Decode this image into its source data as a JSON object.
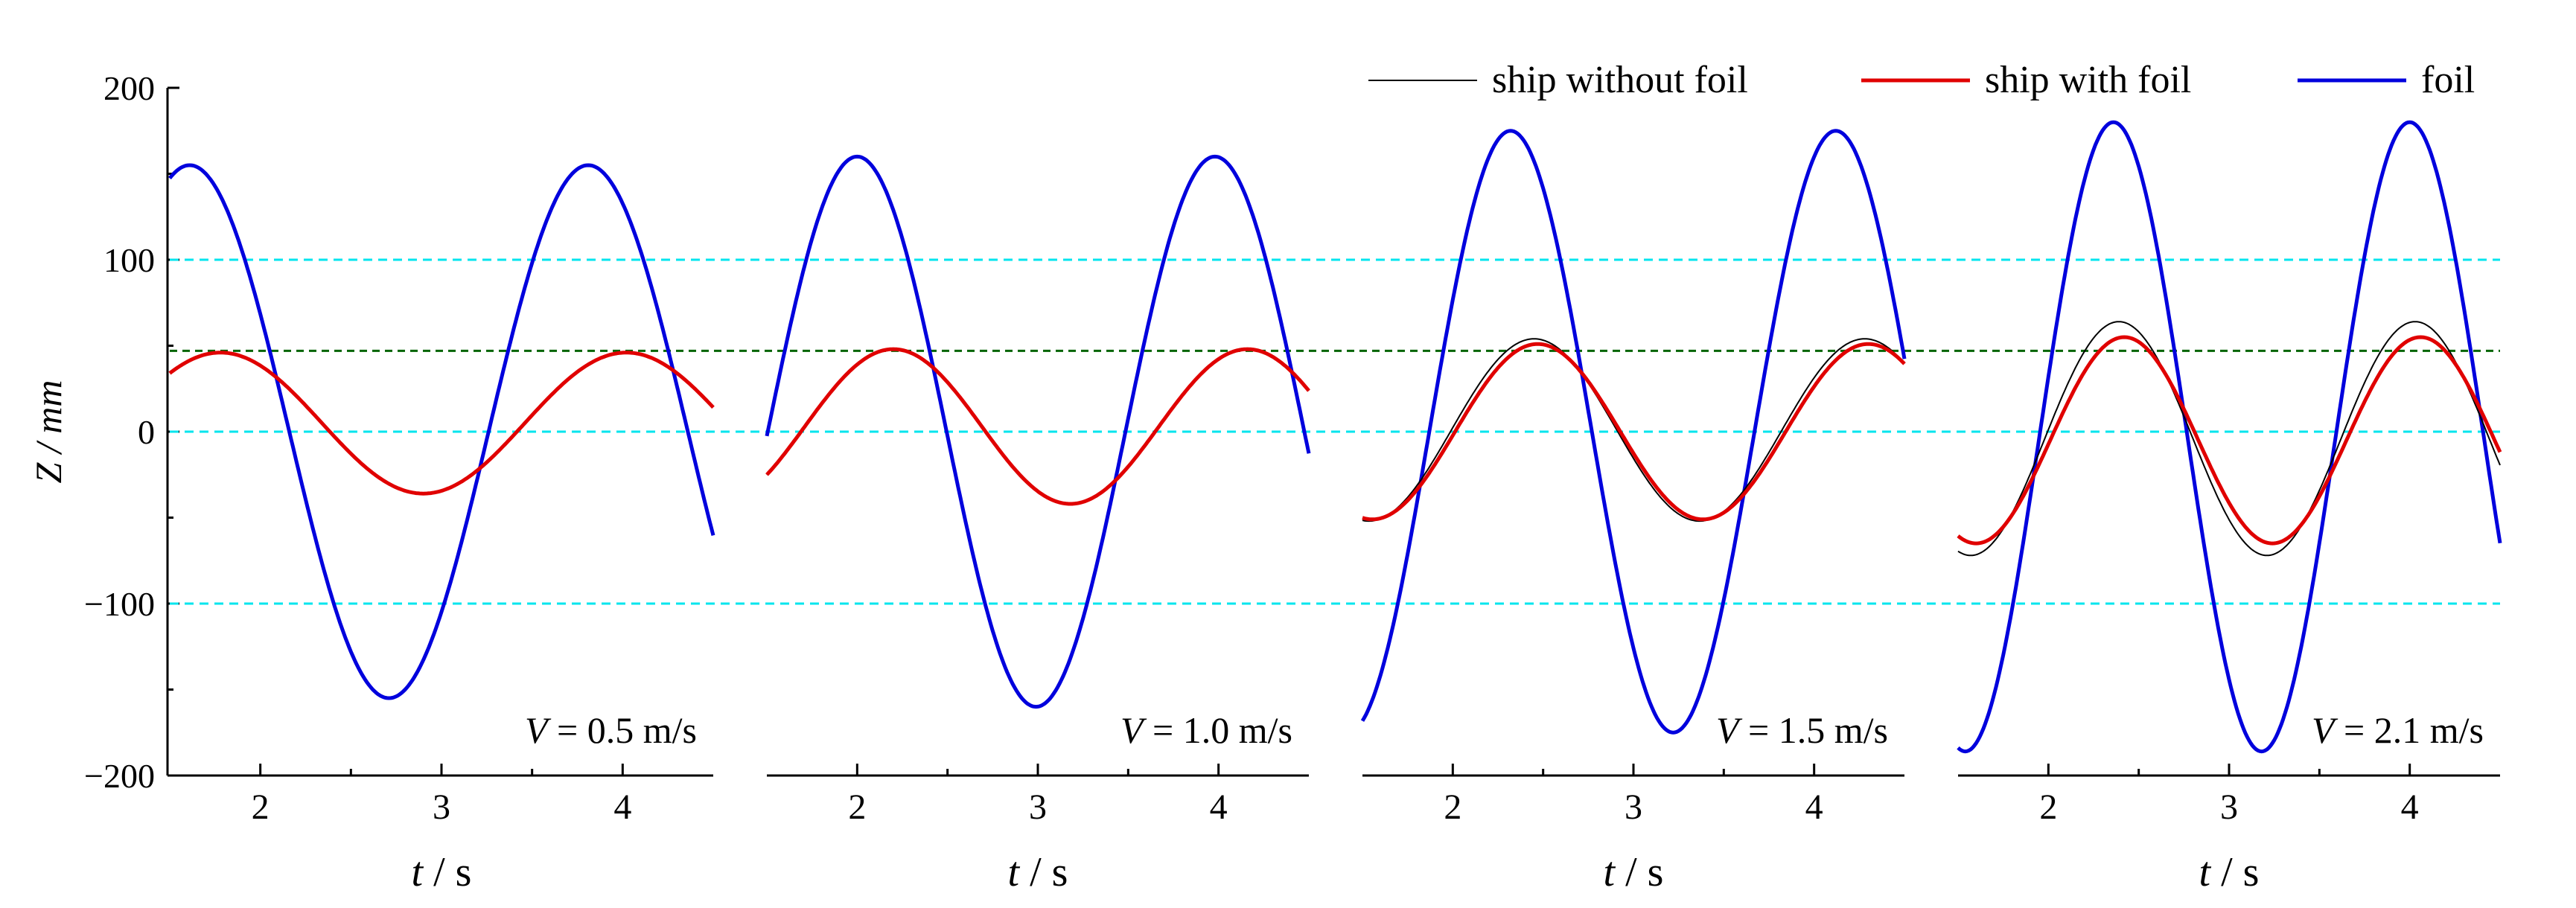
{
  "y_axis": {
    "label": "Z / mm",
    "ticks": [
      "200",
      "100",
      "0",
      "−100",
      "−200"
    ],
    "ylim": [
      -200,
      200
    ]
  },
  "legend": [
    {
      "label": "ship without foil",
      "color": "#000000"
    },
    {
      "label": "ship with foil",
      "color": "#e00000"
    },
    {
      "label": "foil",
      "color": "#0000dd"
    }
  ],
  "ref_lines": {
    "cyan": [
      100,
      0,
      -100
    ],
    "cyan_color": "#00e5ee",
    "green": 47,
    "green_color": "#006400"
  },
  "chart_data": [
    {
      "type": "line",
      "panel_label": "V = 0.5 m/s",
      "xlabel": "t / s",
      "xlim": [
        1.5,
        4.5
      ],
      "ylim": [
        -200,
        200
      ],
      "x_ticks": [
        "2",
        "3",
        "4"
      ],
      "series": [
        {
          "name": "foil",
          "color": "#0000dd",
          "amp": 155,
          "period": 2.2,
          "phase": 1.61,
          "offset": 0,
          "x_start": 1.5,
          "x_end": 4.5
        },
        {
          "name": "ship with foil",
          "color": "#e00000",
          "amp": 41,
          "period": 2.24,
          "phase": 1.78,
          "offset": 5,
          "x_start": 1.5,
          "x_end": 4.5
        }
      ]
    },
    {
      "type": "line",
      "panel_label": "V = 1.0 m/s",
      "xlabel": "t / s",
      "xlim": [
        1.5,
        4.5
      ],
      "ylim": [
        -200,
        200
      ],
      "x_ticks": [
        "2",
        "3",
        "4"
      ],
      "series": [
        {
          "name": "foil",
          "color": "#0000dd",
          "amp": 160,
          "period": 1.98,
          "phase": 2.0,
          "offset": 0,
          "x_start": 1.5,
          "x_end": 4.5
        },
        {
          "name": "ship without foil",
          "color": "#000000",
          "amp": 45,
          "period": 1.96,
          "phase": 2.2,
          "offset": 3,
          "x_start": 1.5,
          "x_end": 4.5
        },
        {
          "name": "ship with foil",
          "color": "#e00000",
          "amp": 45,
          "period": 1.96,
          "phase": 2.2,
          "offset": 3,
          "x_start": 1.5,
          "x_end": 4.5
        }
      ]
    },
    {
      "type": "line",
      "panel_label": "V = 1.5 m/s",
      "xlabel": "t / s",
      "xlim": [
        1.5,
        4.5
      ],
      "ylim": [
        -200,
        200
      ],
      "x_ticks": [
        "2",
        "3",
        "4"
      ],
      "series": [
        {
          "name": "foil",
          "color": "#0000dd",
          "amp": 175,
          "period": 1.8,
          "phase": 2.32,
          "offset": 0,
          "x_start": 1.5,
          "x_end": 4.5
        },
        {
          "name": "ship without foil",
          "color": "#000000",
          "amp": 53,
          "period": 1.83,
          "phase": 2.45,
          "offset": 1,
          "x_start": 1.5,
          "x_end": 4.5
        },
        {
          "name": "ship with foil",
          "color": "#e00000",
          "amp": 51,
          "period": 1.83,
          "phase": 2.47,
          "offset": 0,
          "x_start": 1.5,
          "x_end": 4.5
        }
      ]
    },
    {
      "type": "line",
      "panel_label": "V = 2.1 m/s",
      "xlabel": "t / s",
      "xlim": [
        1.5,
        4.5
      ],
      "ylim": [
        -200,
        200
      ],
      "x_ticks": [
        "2",
        "3",
        "4"
      ],
      "series": [
        {
          "name": "foil",
          "color": "#0000dd",
          "amp": 183,
          "period": 1.64,
          "phase": 2.36,
          "offset": -3,
          "x_start": 1.5,
          "x_end": 4.5
        },
        {
          "name": "ship without foil",
          "color": "#000000",
          "amp": 68,
          "period": 1.64,
          "phase": 2.39,
          "offset": -4,
          "x_start": 1.5,
          "x_end": 4.5
        },
        {
          "name": "ship with foil",
          "color": "#e00000",
          "amp": 60,
          "period": 1.64,
          "phase": 2.42,
          "offset": -5,
          "x_start": 1.5,
          "x_end": 4.5
        }
      ]
    }
  ]
}
